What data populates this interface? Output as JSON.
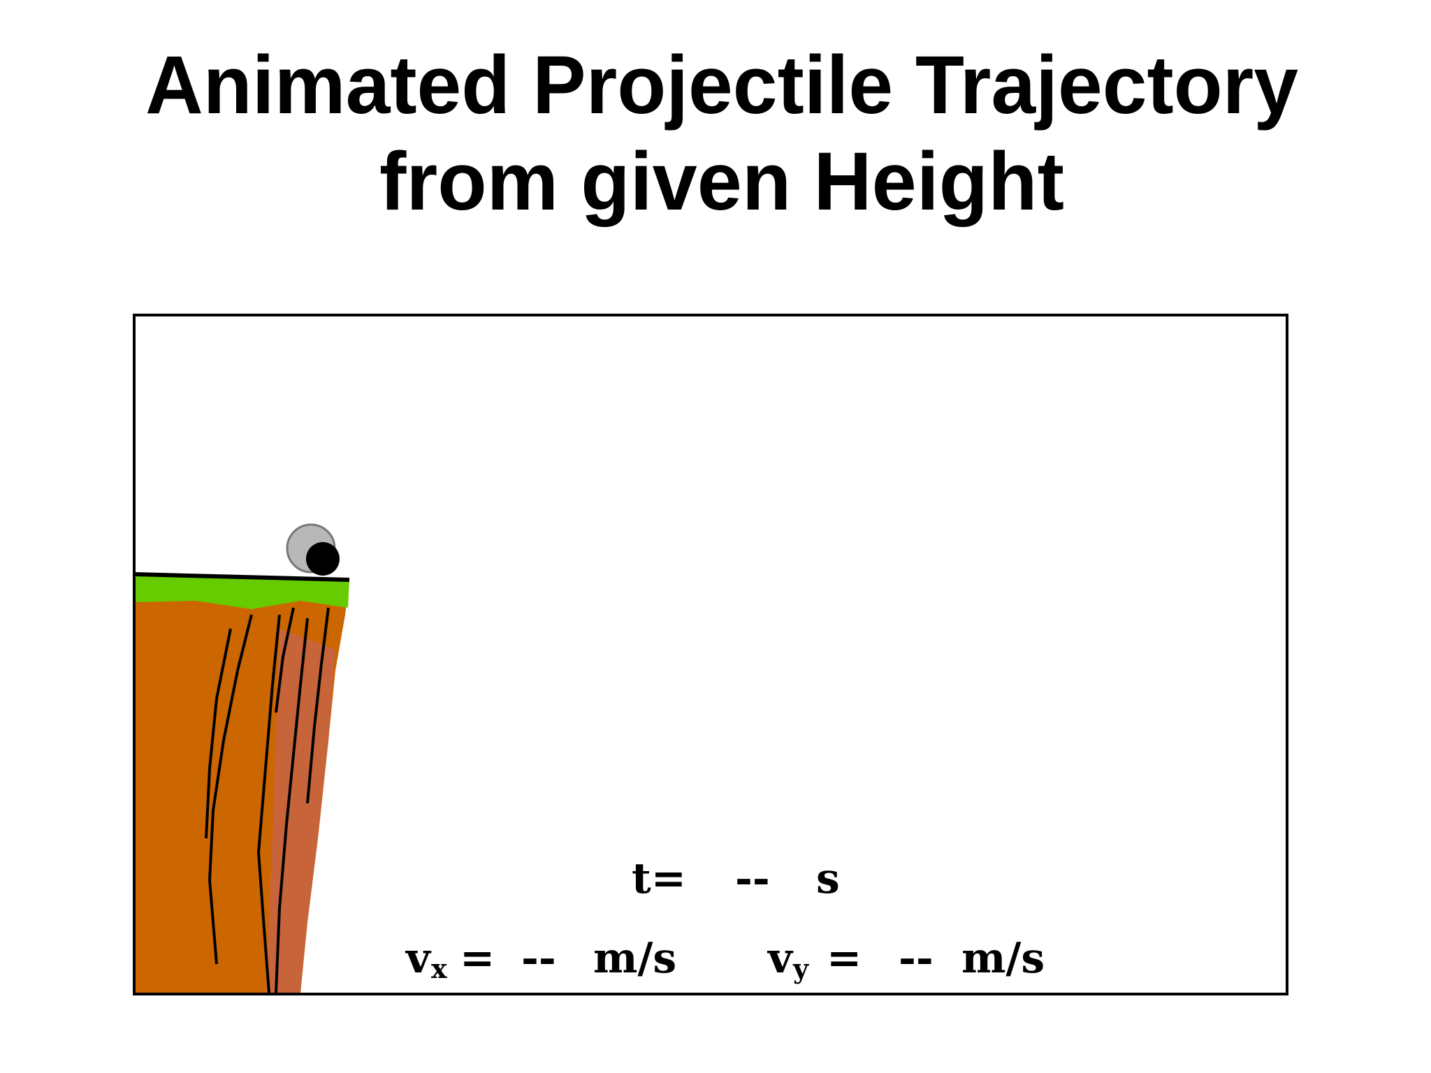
{
  "title": {
    "line1": "Animated Projectile Trajectory",
    "line2": "from given Height"
  },
  "readouts": {
    "time": {
      "label": "t=",
      "value": "--",
      "unit": "s"
    },
    "vx": {
      "symbol": "v",
      "subscript": "x",
      "equals": "=",
      "value": "--",
      "unit": "m/s"
    },
    "vy": {
      "symbol": "v",
      "subscript": "y",
      "equals": "=",
      "value": "--",
      "unit": "m/s"
    }
  }
}
